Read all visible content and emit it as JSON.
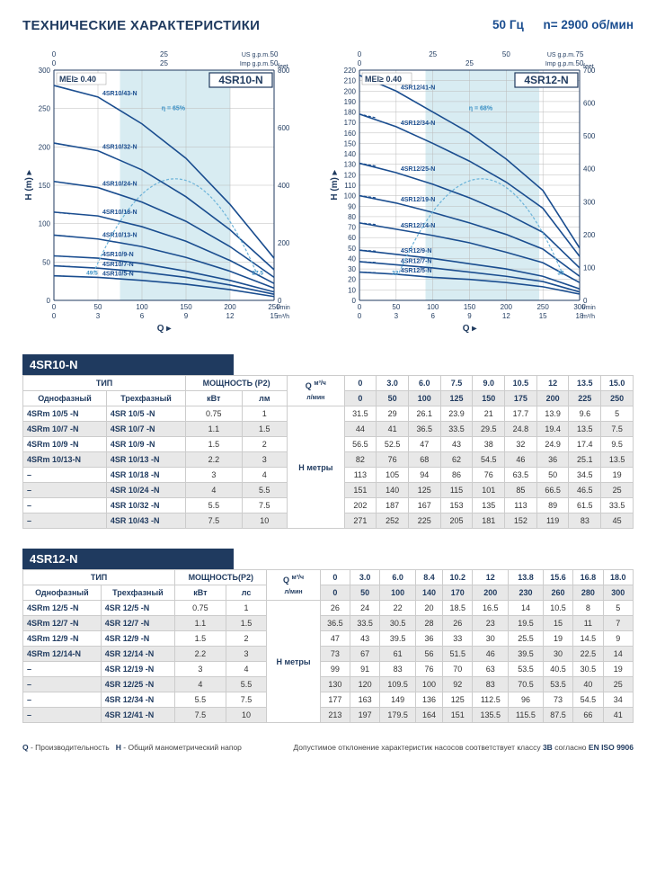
{
  "header": {
    "title": "ТЕХНИЧЕСКИЕ ХАРАКТЕРИСТИКИ",
    "freq": "50 Гц",
    "rpm": "n= 2900 об/мин"
  },
  "charts": {
    "chart1": {
      "model": "4SR10-N",
      "mei": "MEI≥ 0.40",
      "eta": "η = 65%",
      "x_label": "Q",
      "y_label": "H  (m)",
      "x_unit_bottom": "l/min",
      "x_unit_bottom2": "m³/h",
      "x_unit_top": "US g.p.m.",
      "x_unit_top2": "Imp g.p.m.",
      "y_unit_right": "feet",
      "x_ticks_lmin": [
        0,
        50,
        100,
        150,
        200,
        250
      ],
      "x_ticks_m3h": [
        0,
        3,
        6,
        9,
        12,
        15
      ],
      "x_ticks_usgpm": [
        0,
        25,
        50
      ],
      "x_ticks_impgpm": [
        0,
        25,
        50
      ],
      "y_ticks_m": [
        0,
        50,
        100,
        150,
        200,
        250,
        300
      ],
      "y_ticks_ft": [
        0,
        200,
        400,
        600,
        800
      ],
      "band_x": [
        75,
        200
      ],
      "x_max": 250,
      "y_max": 300,
      "eff_endpoints": [
        "49.5",
        "27.5"
      ],
      "curves": [
        {
          "label": "4SR10/43-N",
          "pts": [
            [
              0,
              280
            ],
            [
              50,
              265
            ],
            [
              100,
              230
            ],
            [
              150,
              185
            ],
            [
              200,
              125
            ],
            [
              250,
              55
            ]
          ]
        },
        {
          "label": "4SR10/32-N",
          "pts": [
            [
              0,
              205
            ],
            [
              50,
              195
            ],
            [
              100,
              170
            ],
            [
              150,
              135
            ],
            [
              200,
              92
            ],
            [
              250,
              40
            ]
          ]
        },
        {
          "label": "4SR10/24-N",
          "pts": [
            [
              0,
              155
            ],
            [
              50,
              147
            ],
            [
              100,
              128
            ],
            [
              150,
              103
            ],
            [
              200,
              70
            ],
            [
              250,
              30
            ]
          ]
        },
        {
          "label": "4SR10/18-N",
          "pts": [
            [
              0,
              115
            ],
            [
              50,
              110
            ],
            [
              100,
              96
            ],
            [
              150,
              77
            ],
            [
              200,
              52
            ],
            [
              250,
              22
            ]
          ]
        },
        {
          "label": "4SR10/13-N",
          "pts": [
            [
              0,
              85
            ],
            [
              50,
              80
            ],
            [
              100,
              70
            ],
            [
              150,
              56
            ],
            [
              200,
              38
            ],
            [
              250,
              16
            ]
          ]
        },
        {
          "label": "4SR10/9-N",
          "pts": [
            [
              0,
              58
            ],
            [
              50,
              55
            ],
            [
              100,
              48
            ],
            [
              150,
              38
            ],
            [
              200,
              26
            ],
            [
              250,
              11
            ]
          ]
        },
        {
          "label": "4SR10/7-N",
          "pts": [
            [
              0,
              45
            ],
            [
              50,
              42
            ],
            [
              100,
              37
            ],
            [
              150,
              30
            ],
            [
              200,
              20
            ],
            [
              250,
              8
            ]
          ]
        },
        {
          "label": "4SR10/5-N",
          "pts": [
            [
              0,
              32
            ],
            [
              50,
              30
            ],
            [
              100,
              26
            ],
            [
              150,
              21
            ],
            [
              200,
              14
            ],
            [
              250,
              5
            ]
          ]
        }
      ],
      "colors": {
        "curve": "#1a4d8f",
        "band": "#b8dce8",
        "grid": "#bbb",
        "axis": "#1f3a5f",
        "eff": "#6bb3d9"
      }
    },
    "chart2": {
      "model": "4SR12-N",
      "mei": "MEI≥ 0.40",
      "eta": "η = 68%",
      "x_label": "Q",
      "y_label": "H  (m)",
      "x_unit_bottom": "l/min",
      "x_unit_bottom2": "m³/h",
      "x_unit_top": "US g.p.m.",
      "x_unit_top2": "Imp g.p.m.",
      "y_unit_right": "feet",
      "x_ticks_lmin": [
        0,
        50,
        100,
        150,
        200,
        250,
        300
      ],
      "x_ticks_m3h": [
        0,
        3,
        6,
        9,
        12,
        15,
        18
      ],
      "x_ticks_usgpm": [
        0,
        25,
        50,
        75
      ],
      "x_ticks_impgpm": [
        0,
        25,
        50
      ],
      "y_ticks_m": [
        0,
        10,
        20,
        30,
        40,
        50,
        60,
        70,
        80,
        90,
        100,
        110,
        120,
        130,
        140,
        150,
        160,
        170,
        180,
        190,
        200,
        210,
        220
      ],
      "y_ticks_ft": [
        0,
        100,
        200,
        300,
        400,
        500,
        600,
        700
      ],
      "band_x": [
        90,
        245
      ],
      "x_max": 300,
      "y_max": 220,
      "eff_endpoints": [
        "32",
        "33"
      ],
      "curves": [
        {
          "label": "4SR12/41-N",
          "pts": [
            [
              0,
              215
            ],
            [
              50,
              200
            ],
            [
              100,
              180
            ],
            [
              150,
              160
            ],
            [
              200,
              135
            ],
            [
              250,
              105
            ],
            [
              300,
              50
            ]
          ]
        },
        {
          "label": "4SR12/34-N",
          "pts": [
            [
              0,
              178
            ],
            [
              50,
              166
            ],
            [
              100,
              150
            ],
            [
              150,
              133
            ],
            [
              200,
              113
            ],
            [
              250,
              88
            ],
            [
              300,
              42
            ]
          ]
        },
        {
          "label": "4SR12/25-N",
          "pts": [
            [
              0,
              131
            ],
            [
              50,
              122
            ],
            [
              100,
              111
            ],
            [
              150,
              98
            ],
            [
              200,
              83
            ],
            [
              250,
              65
            ],
            [
              300,
              31
            ]
          ]
        },
        {
          "label": "4SR12/19-N",
          "pts": [
            [
              0,
              100
            ],
            [
              50,
              93
            ],
            [
              100,
              84
            ],
            [
              150,
              74
            ],
            [
              200,
              63
            ],
            [
              250,
              49
            ],
            [
              300,
              23
            ]
          ]
        },
        {
          "label": "4SR12/14-N",
          "pts": [
            [
              0,
              74
            ],
            [
              50,
              68
            ],
            [
              100,
              62
            ],
            [
              150,
              55
            ],
            [
              200,
              46
            ],
            [
              250,
              36
            ],
            [
              300,
              17
            ]
          ]
        },
        {
          "label": "4SR12/9-N",
          "pts": [
            [
              0,
              48
            ],
            [
              50,
              44
            ],
            [
              100,
              40
            ],
            [
              150,
              35
            ],
            [
              200,
              30
            ],
            [
              250,
              23
            ],
            [
              300,
              11
            ]
          ]
        },
        {
          "label": "4SR12/7-N",
          "pts": [
            [
              0,
              37
            ],
            [
              50,
              34
            ],
            [
              100,
              31
            ],
            [
              150,
              27
            ],
            [
              200,
              23
            ],
            [
              250,
              18
            ],
            [
              300,
              8
            ]
          ]
        },
        {
          "label": "4SR12/5-N",
          "pts": [
            [
              0,
              27
            ],
            [
              50,
              25
            ],
            [
              100,
              22
            ],
            [
              150,
              20
            ],
            [
              200,
              17
            ],
            [
              250,
              13
            ],
            [
              300,
              6
            ]
          ]
        }
      ],
      "colors": {
        "curve": "#1a4d8f",
        "band": "#b8dce8",
        "grid": "#bbb",
        "axis": "#1f3a5f",
        "eff": "#6bb3d9"
      }
    }
  },
  "tables": {
    "t1": {
      "title": "4SR10-N",
      "type_h": "ТИП",
      "power_h": "МОЩНОСТЬ (P2)",
      "col_single": "Однофазный",
      "col_three": "Трехфазный",
      "col_kw": "кВт",
      "col_hp": "лм",
      "q_top": "м³/ч",
      "q_bot": "л/мин",
      "h_unit": "Н метры",
      "q_m3h": [
        "0",
        "3.0",
        "6.0",
        "7.5",
        "9.0",
        "10.5",
        "12",
        "13.5",
        "15.0"
      ],
      "q_lmin": [
        "0",
        "50",
        "100",
        "125",
        "150",
        "175",
        "200",
        "225",
        "250"
      ],
      "rows": [
        {
          "s": "4SRm 10/5  -N",
          "t": "4SR 10/5   -N",
          "kw": "0.75",
          "hp": "1",
          "v": [
            "31.5",
            "29",
            "26.1",
            "23.9",
            "21",
            "17.7",
            "13.9",
            "9.6",
            "5"
          ]
        },
        {
          "s": "4SRm 10/7  -N",
          "t": "4SR 10/7   -N",
          "kw": "1.1",
          "hp": "1.5",
          "v": [
            "44",
            "41",
            "36.5",
            "33.5",
            "29.5",
            "24.8",
            "19.4",
            "13.5",
            "7.5"
          ]
        },
        {
          "s": "4SRm 10/9  -N",
          "t": "4SR 10/9   -N",
          "kw": "1.5",
          "hp": "2",
          "v": [
            "56.5",
            "52.5",
            "47",
            "43",
            "38",
            "32",
            "24.9",
            "17.4",
            "9.5"
          ]
        },
        {
          "s": "4SRm 10/13-N",
          "t": "4SR 10/13 -N",
          "kw": "2.2",
          "hp": "3",
          "v": [
            "82",
            "76",
            "68",
            "62",
            "54.5",
            "46",
            "36",
            "25.1",
            "13.5"
          ]
        },
        {
          "s": "–",
          "t": "4SR 10/18 -N",
          "kw": "3",
          "hp": "4",
          "v": [
            "113",
            "105",
            "94",
            "86",
            "76",
            "63.5",
            "50",
            "34.5",
            "19"
          ]
        },
        {
          "s": "–",
          "t": "4SR 10/24 -N",
          "kw": "4",
          "hp": "5.5",
          "v": [
            "151",
            "140",
            "125",
            "115",
            "101",
            "85",
            "66.5",
            "46.5",
            "25"
          ]
        },
        {
          "s": "–",
          "t": "4SR 10/32 -N",
          "kw": "5.5",
          "hp": "7.5",
          "v": [
            "202",
            "187",
            "167",
            "153",
            "135",
            "113",
            "89",
            "61.5",
            "33.5"
          ]
        },
        {
          "s": "–",
          "t": "4SR 10/43 -N",
          "kw": "7.5",
          "hp": "10",
          "v": [
            "271",
            "252",
            "225",
            "205",
            "181",
            "152",
            "119",
            "83",
            "45"
          ]
        }
      ]
    },
    "t2": {
      "title": "4SR12-N",
      "type_h": "ТИП",
      "power_h": "МОЩНОСТЬ(P2)",
      "col_single": "Однофазный",
      "col_three": "Трехфазный",
      "col_kw": "кВт",
      "col_hp": "лс",
      "q_top": "м³/ч",
      "q_bot": "л/мин",
      "h_unit": "Н метры",
      "q_m3h": [
        "0",
        "3.0",
        "6.0",
        "8.4",
        "10.2",
        "12",
        "13.8",
        "15.6",
        "16.8",
        "18.0"
      ],
      "q_lmin": [
        "0",
        "50",
        "100",
        "140",
        "170",
        "200",
        "230",
        "260",
        "280",
        "300"
      ],
      "rows": [
        {
          "s": "4SRm 12/5  -N",
          "t": "4SR 12/5   -N",
          "kw": "0.75",
          "hp": "1",
          "v": [
            "26",
            "24",
            "22",
            "20",
            "18.5",
            "16.5",
            "14",
            "10.5",
            "8",
            "5"
          ]
        },
        {
          "s": "4SRm 12/7  -N",
          "t": "4SR 12/7   -N",
          "kw": "1.1",
          "hp": "1.5",
          "v": [
            "36.5",
            "33.5",
            "30.5",
            "28",
            "26",
            "23",
            "19.5",
            "15",
            "11",
            "7"
          ]
        },
        {
          "s": "4SRm 12/9  -N",
          "t": "4SR 12/9   -N",
          "kw": "1.5",
          "hp": "2",
          "v": [
            "47",
            "43",
            "39.5",
            "36",
            "33",
            "30",
            "25.5",
            "19",
            "14.5",
            "9"
          ]
        },
        {
          "s": "4SRm 12/14-N",
          "t": "4SR 12/14 -N",
          "kw": "2.2",
          "hp": "3",
          "v": [
            "73",
            "67",
            "61",
            "56",
            "51.5",
            "46",
            "39.5",
            "30",
            "22.5",
            "14"
          ]
        },
        {
          "s": "–",
          "t": "4SR 12/19 -N",
          "kw": "3",
          "hp": "4",
          "v": [
            "99",
            "91",
            "83",
            "76",
            "70",
            "63",
            "53.5",
            "40.5",
            "30.5",
            "19"
          ]
        },
        {
          "s": "–",
          "t": "4SR 12/25 -N",
          "kw": "4",
          "hp": "5.5",
          "v": [
            "130",
            "120",
            "109.5",
            "100",
            "92",
            "83",
            "70.5",
            "53.5",
            "40",
            "25"
          ]
        },
        {
          "s": "–",
          "t": "4SR 12/34 -N",
          "kw": "5.5",
          "hp": "7.5",
          "v": [
            "177",
            "163",
            "149",
            "136",
            "125",
            "112.5",
            "96",
            "73",
            "54.5",
            "34"
          ]
        },
        {
          "s": "–",
          "t": "4SR 12/41 -N",
          "kw": "7.5",
          "hp": "10",
          "v": [
            "213",
            "197",
            "179.5",
            "164",
            "151",
            "135.5",
            "115.5",
            "87.5",
            "66",
            "41"
          ]
        }
      ]
    }
  },
  "footer": {
    "left": "Q - Производительность   H - Общий манометрический напор",
    "rightPrefix": "Допустимое отклонение характеристик насосов соответствует классу ",
    "rightBold1": "3B",
    "rightMid": " согласно ",
    "rightBold2": "EN ISO 9906"
  }
}
